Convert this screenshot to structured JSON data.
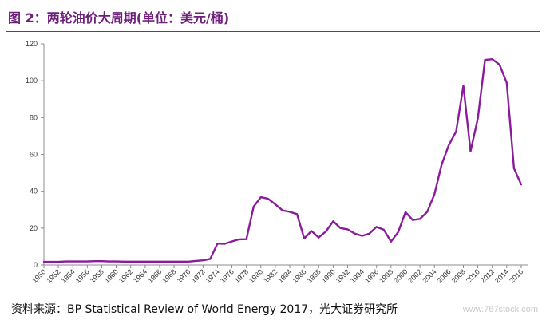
{
  "title": "图 2：两轮油价大周期(单位：美元/桶)",
  "source": "资料来源：BP Statistical Review of World Energy 2017，光大证券研究所",
  "watermark": "www.767stock.com",
  "colors": {
    "line": "#8a1c9c",
    "title": "#6d1f7a",
    "rule": "#7f2a8a"
  },
  "chart_data": {
    "type": "line",
    "title": "",
    "xlabel": "",
    "ylabel": "",
    "ylim": [
      0,
      120
    ],
    "yticks": [
      0,
      20,
      40,
      60,
      80,
      100,
      120
    ],
    "xticks": [
      1950,
      1952,
      1954,
      1956,
      1958,
      1960,
      1962,
      1964,
      1966,
      1968,
      1970,
      1972,
      1974,
      1976,
      1978,
      1980,
      1982,
      1984,
      1986,
      1988,
      1990,
      1992,
      1994,
      1996,
      1998,
      2000,
      2002,
      2004,
      2006,
      2008,
      2010,
      2012,
      2014,
      2016
    ],
    "grid": false,
    "series": [
      {
        "x": [
          1950,
          1951,
          1952,
          1953,
          1954,
          1955,
          1956,
          1957,
          1958,
          1959,
          1960,
          1961,
          1962,
          1963,
          1964,
          1965,
          1966,
          1967,
          1968,
          1969,
          1970,
          1971,
          1972,
          1973,
          1974,
          1975,
          1976,
          1977,
          1978,
          1979,
          1980,
          1981,
          1982,
          1983,
          1984,
          1985,
          1986,
          1987,
          1988,
          1989,
          1990,
          1991,
          1992,
          1993,
          1994,
          1995,
          1996,
          1997,
          1998,
          1999,
          2000,
          2001,
          2002,
          2003,
          2004,
          2005,
          2006,
          2007,
          2008,
          2009,
          2010,
          2011,
          2012,
          2013,
          2014,
          2015,
          2016
        ],
        "values": [
          1.7,
          1.7,
          1.7,
          1.9,
          1.9,
          1.9,
          1.9,
          2.1,
          2.1,
          1.9,
          1.9,
          1.8,
          1.8,
          1.8,
          1.8,
          1.8,
          1.8,
          1.8,
          1.8,
          1.8,
          1.8,
          2.2,
          2.5,
          3.3,
          11.6,
          11.5,
          12.8,
          13.9,
          14.0,
          31.6,
          36.8,
          35.9,
          32.9,
          29.6,
          28.8,
          27.6,
          14.4,
          18.4,
          14.9,
          18.2,
          23.7,
          20.0,
          19.3,
          17.0,
          15.8,
          17.0,
          20.6,
          19.1,
          12.7,
          17.9,
          28.7,
          24.4,
          25.0,
          28.8,
          38.3,
          54.5,
          65.1,
          72.4,
          97.3,
          61.7,
          79.5,
          111.3,
          111.7,
          108.7,
          98.9,
          52.4,
          43.7
        ]
      }
    ]
  }
}
